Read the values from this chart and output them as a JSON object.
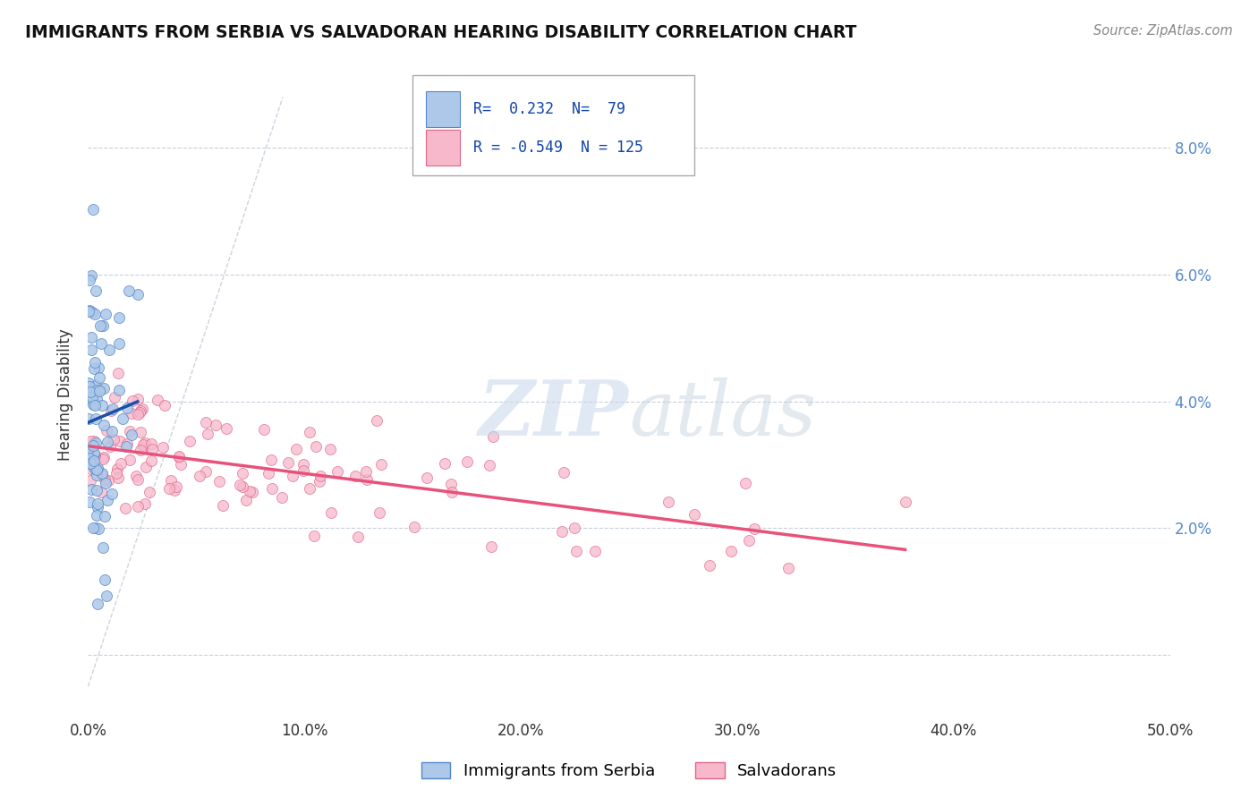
{
  "title": "IMMIGRANTS FROM SERBIA VS SALVADORAN HEARING DISABILITY CORRELATION CHART",
  "source_text": "Source: ZipAtlas.com",
  "ylabel": "Hearing Disability",
  "legend_label1": "Immigrants from Serbia",
  "legend_label2": "Salvadorans",
  "R1": 0.232,
  "N1": 79,
  "R2": -0.549,
  "N2": 125,
  "color1": "#adc8e8",
  "color2": "#f7b8cc",
  "line_color1": "#1a4faa",
  "line_color2": "#e8527a",
  "edge_color1": "#5588cc",
  "edge_color2": "#dd6688",
  "xlim": [
    0.0,
    0.5
  ],
  "ylim": [
    -0.01,
    0.092
  ],
  "yticks": [
    0.0,
    0.02,
    0.04,
    0.06,
    0.08
  ],
  "ytick_labels_right": [
    "",
    "2.0%",
    "4.0%",
    "6.0%",
    "8.0%"
  ],
  "xticks": [
    0.0,
    0.1,
    0.2,
    0.3,
    0.4,
    0.5
  ],
  "xtick_labels": [
    "0.0%",
    "10.0%",
    "20.0%",
    "30.0%",
    "40.0%",
    "50.0%"
  ],
  "watermark_zip": "ZIP",
  "watermark_atlas": "atlas",
  "background_color": "#ffffff",
  "right_tick_color": "#5588cc"
}
